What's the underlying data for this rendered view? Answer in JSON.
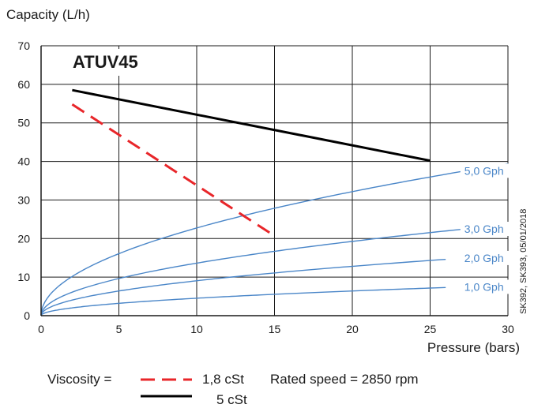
{
  "chart_data": {
    "type": "line",
    "title": "ATUV45",
    "ylabel": "Capacity (L/h)",
    "xlabel": "Pressure (bars)",
    "xlim": [
      0,
      30
    ],
    "ylim": [
      0,
      70
    ],
    "x_ticks": [
      0,
      5,
      10,
      15,
      20,
      25,
      30
    ],
    "y_ticks": [
      0,
      10,
      20,
      30,
      40,
      50,
      60,
      70
    ],
    "grid": true,
    "side_note": "SK392, SK393, 05/01/2018",
    "series": [
      {
        "name": "1,8 cSt",
        "color": "#e8262a",
        "dashed": true,
        "x": [
          2,
          15
        ],
        "y": [
          54.8,
          20.7
        ]
      },
      {
        "name": "5 cSt",
        "color": "#000000",
        "dashed": false,
        "x": [
          2,
          25
        ],
        "y": [
          58.5,
          40.2
        ]
      }
    ],
    "reference_curves": [
      {
        "label": "5,0 Gph",
        "color": "#4a86c8",
        "exponent": 0.5,
        "x": [
          0,
          1,
          2,
          5,
          10,
          15,
          20,
          26,
          30
        ],
        "y": [
          0,
          7.2,
          10.2,
          16.1,
          22.8,
          27.9,
          32.2,
          36.7,
          39.4
        ]
      },
      {
        "label": "3,0 Gph",
        "color": "#4a86c8",
        "exponent": 0.5,
        "x": [
          0,
          1,
          2,
          5,
          10,
          15,
          20,
          26,
          30
        ],
        "y": [
          0,
          4.3,
          6.1,
          9.7,
          13.7,
          16.8,
          19.3,
          22.0,
          23.6
        ]
      },
      {
        "label": "2,0 Gph",
        "color": "#4a86c8",
        "exponent": 0.5,
        "x": [
          0,
          1,
          2,
          5,
          10,
          15,
          20,
          26
        ],
        "y": [
          0,
          2.9,
          4.0,
          6.4,
          9.1,
          11.1,
          12.8,
          14.6
        ]
      },
      {
        "label": "1,0 Gph",
        "color": "#4a86c8",
        "exponent": 0.5,
        "x": [
          0,
          1,
          2,
          5,
          10,
          15,
          20,
          26
        ],
        "y": [
          0,
          1.4,
          2.0,
          3.2,
          4.5,
          5.6,
          6.4,
          7.3
        ]
      }
    ],
    "legend": {
      "prefix": "Viscosity =",
      "rated_speed": "Rated speed = 2850 rpm"
    }
  }
}
